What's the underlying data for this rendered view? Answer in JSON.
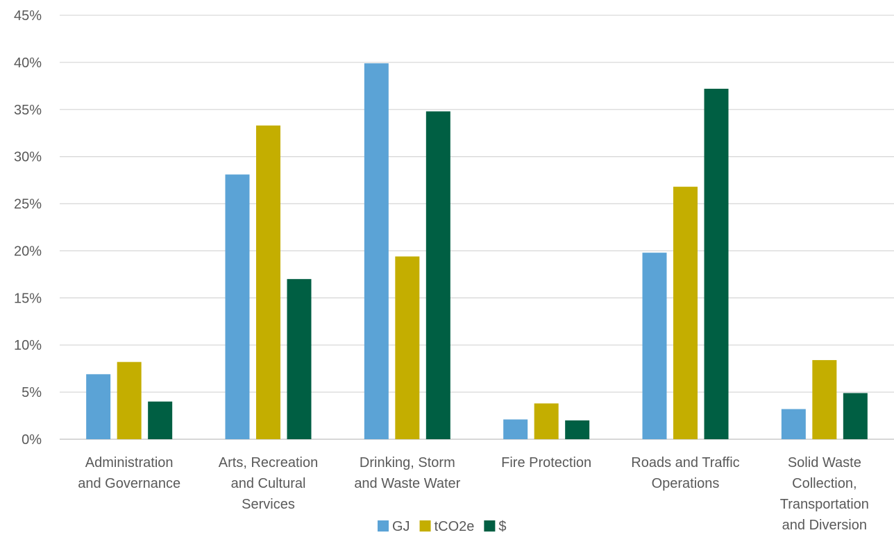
{
  "chart_data": {
    "type": "bar",
    "title": "",
    "xlabel": "",
    "ylabel": "",
    "ylim": [
      0,
      45
    ],
    "y_ticks": [
      "0%",
      "5%",
      "10%",
      "15%",
      "20%",
      "25%",
      "30%",
      "35%",
      "40%",
      "45%"
    ],
    "grid": true,
    "legend_position": "bottom",
    "categories": [
      [
        "Administration",
        "and Governance"
      ],
      [
        "Arts, Recreation",
        "and Cultural",
        "Services"
      ],
      [
        "Drinking, Storm",
        "and Waste Water"
      ],
      [
        "Fire Protection"
      ],
      [
        "Roads and Traffic",
        "Operations"
      ],
      [
        "Solid Waste",
        "Collection,",
        "Transportation",
        "and Diversion"
      ]
    ],
    "series": [
      {
        "name": "GJ",
        "color": "#5BA3D6",
        "values": [
          6.9,
          28.1,
          39.9,
          2.1,
          19.8,
          3.2
        ]
      },
      {
        "name": "tCO2e",
        "color": "#C4AE00",
        "values": [
          8.2,
          33.3,
          19.4,
          3.8,
          26.8,
          8.4
        ]
      },
      {
        "name": "$",
        "color": "#005F43",
        "values": [
          4.0,
          17.0,
          34.8,
          2.0,
          37.2,
          4.9
        ]
      }
    ]
  }
}
